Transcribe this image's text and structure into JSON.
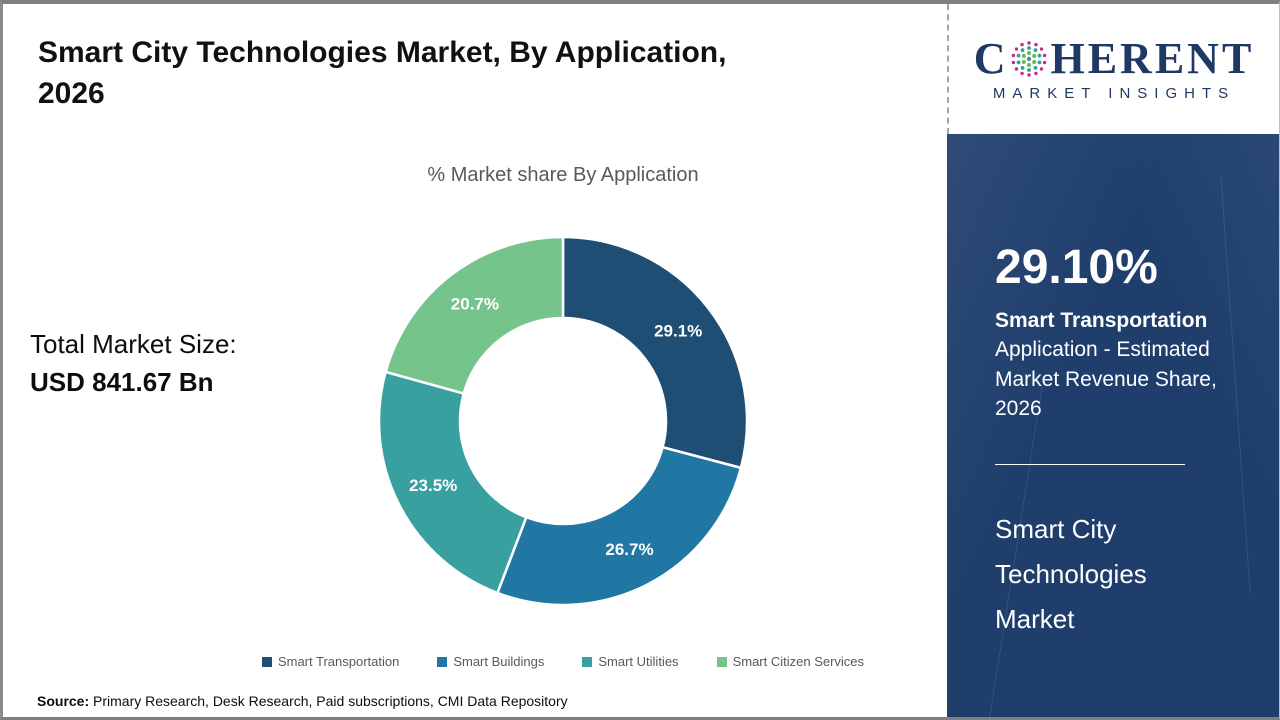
{
  "page": {
    "title_line1": "Smart City Technologies Market, By Application,",
    "title_line2": "2026",
    "source_label": "Source:",
    "source_text": "Primary Research, Desk Research, Paid subscriptions, CMI Data Repository"
  },
  "brand": {
    "logo_prefix": "C",
    "logo_suffix": "HERENT",
    "logo_tagline": "MARKET INSIGHTS",
    "navy": "#1F3864",
    "globe_outer_color": "#C12A83",
    "globe_mid_color": "#2E9E9E",
    "globe_inner_color": "#64BC4E"
  },
  "totals": {
    "label": "Total Market Size:",
    "value": "USD 841.67 Bn"
  },
  "sidebar": {
    "highlight_value": "29.10%",
    "highlight_title": "Smart Transportation",
    "highlight_desc": "Application - Estimated Market Revenue Share, 2026",
    "market_name": "Smart City Technologies Market",
    "bg_color": "#1F3E6C"
  },
  "chart_data": {
    "type": "pie",
    "subtype": "donut",
    "title": "% Market share By Application",
    "categories": [
      "Smart Transportation",
      "Smart Buildings",
      "Smart Utilities",
      "Smart Citizen Services"
    ],
    "values": [
      29.1,
      26.7,
      23.5,
      20.7
    ],
    "labels": [
      "29.1%",
      "26.7%",
      "23.5%",
      "20.7%"
    ],
    "colors": [
      "#1F4E74",
      "#2077A4",
      "#38A09E",
      "#74C48B"
    ],
    "start_angle": 0,
    "direction": "clockwise",
    "legend_position": "bottom",
    "inner_radius_ratio": 0.56,
    "slice_gap_color": "#FFFFFF"
  }
}
